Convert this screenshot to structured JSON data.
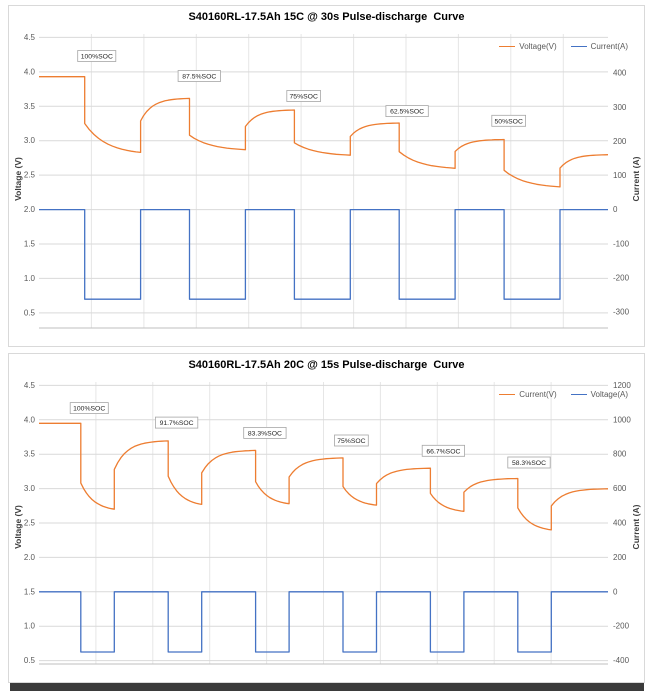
{
  "bottom_bar": {
    "color": "#3b3b3b"
  },
  "chart_data": [
    {
      "type": "line",
      "title": "S40160RL-17.5Ah 15C @ 30s Pulse-discharge  Curve",
      "legend": [
        {
          "label": "Voltage(V)",
          "color": "#ED7D31"
        },
        {
          "label": "Current(A)",
          "color": "#4472C4"
        }
      ],
      "left_axis": {
        "label": "Voltage (V)",
        "min": 0.28,
        "max": 4.55,
        "ticks": [
          "4.5",
          "4.0",
          "3.5",
          "3.0",
          "2.5",
          "2.0",
          "1.5",
          "1.0",
          "0.5"
        ]
      },
      "right_axis": {
        "label": "Current (A)",
        "min": -347,
        "max": 515,
        "ticks": [
          "400",
          "300",
          "200",
          "100",
          "0",
          "-100",
          "-200",
          "-300"
        ]
      },
      "x_axis": {
        "min": 0,
        "max": 610.5,
        "grid_step": 56.25
      },
      "timing": {
        "pre": 49,
        "pulse": 60,
        "rest": 52.5
      },
      "series": [
        {
          "name": "Voltage(V)",
          "color": "#ED7D31",
          "axis": "left",
          "kind": "pulse-voltage",
          "initial": 3.93,
          "pulses": [
            {
              "drop_to": 3.25,
              "end_of_pulse": 2.83,
              "recover_to": 3.62
            },
            {
              "drop_to": 3.08,
              "end_of_pulse": 2.87,
              "recover_to": 3.45
            },
            {
              "drop_to": 2.97,
              "end_of_pulse": 2.79,
              "recover_to": 3.26
            },
            {
              "drop_to": 2.84,
              "end_of_pulse": 2.6,
              "recover_to": 3.02
            },
            {
              "drop_to": 2.57,
              "end_of_pulse": 2.33,
              "recover_to": 2.8
            }
          ]
        },
        {
          "name": "Current(A)",
          "color": "#4472C4",
          "axis": "right",
          "kind": "pulse-current",
          "rest_value": 0,
          "pulse_value": -262.5
        }
      ],
      "annotations": [
        {
          "text": "100%SOC",
          "t": 62,
          "v": 4.23
        },
        {
          "text": "87.5%SOC",
          "t": 172,
          "v": 3.94
        },
        {
          "text": "75%SOC",
          "t": 284,
          "v": 3.65
        },
        {
          "text": "62.5%SOC",
          "t": 395,
          "v": 3.43
        },
        {
          "text": "50%SOC",
          "t": 504,
          "v": 3.29
        }
      ]
    },
    {
      "type": "line",
      "title": "S40160RL-17.5Ah 20C @ 15s Pulse-discharge  Curve",
      "legend": [
        {
          "label": "Current(V)",
          "color": "#ED7D31"
        },
        {
          "label": "Voltage(A)",
          "color": "#4472C4"
        }
      ],
      "left_axis": {
        "label": "Voltage (V)",
        "min": 0.45,
        "max": 4.55,
        "ticks": [
          "4.5",
          "4.0",
          "3.5",
          "3.0",
          "2.5",
          "2.0",
          "1.5",
          "1.0",
          "0.5"
        ]
      },
      "right_axis": {
        "label": "Current (A)",
        "min": -420,
        "max": 1220,
        "ticks": [
          "1200",
          "1000",
          "800",
          "600",
          "400",
          "200",
          "0",
          "-200",
          "-400"
        ]
      },
      "x_axis": {
        "min": 0,
        "max": 612,
        "grid_step": 61.2
      },
      "timing": {
        "pre": 45,
        "pulse": 36,
        "rest": 58
      },
      "series": [
        {
          "name": "Current(V)",
          "color": "#ED7D31",
          "axis": "left",
          "kind": "pulse-voltage",
          "initial": 3.95,
          "pulses": [
            {
              "drop_to": 3.08,
              "end_of_pulse": 2.7,
              "recover_to": 3.7
            },
            {
              "drop_to": 3.18,
              "end_of_pulse": 2.77,
              "recover_to": 3.56
            },
            {
              "drop_to": 3.1,
              "end_of_pulse": 2.78,
              "recover_to": 3.45
            },
            {
              "drop_to": 3.03,
              "end_of_pulse": 2.76,
              "recover_to": 3.3
            },
            {
              "drop_to": 2.93,
              "end_of_pulse": 2.67,
              "recover_to": 3.15
            },
            {
              "drop_to": 2.72,
              "end_of_pulse": 2.4,
              "recover_to": 3.0
            }
          ]
        },
        {
          "name": "Voltage(A)",
          "color": "#4472C4",
          "axis": "right",
          "kind": "pulse-current",
          "rest_value": 0,
          "pulse_value": -350
        }
      ],
      "annotations": [
        {
          "text": "100%SOC",
          "t": 54,
          "v": 4.17
        },
        {
          "text": "91.7%SOC",
          "t": 148,
          "v": 3.96
        },
        {
          "text": "83.3%SOC",
          "t": 243,
          "v": 3.81
        },
        {
          "text": "75%SOC",
          "t": 336,
          "v": 3.7
        },
        {
          "text": "66.7%SOC",
          "t": 435,
          "v": 3.55
        },
        {
          "text": "58.3%SOC",
          "t": 527,
          "v": 3.38
        }
      ]
    }
  ]
}
